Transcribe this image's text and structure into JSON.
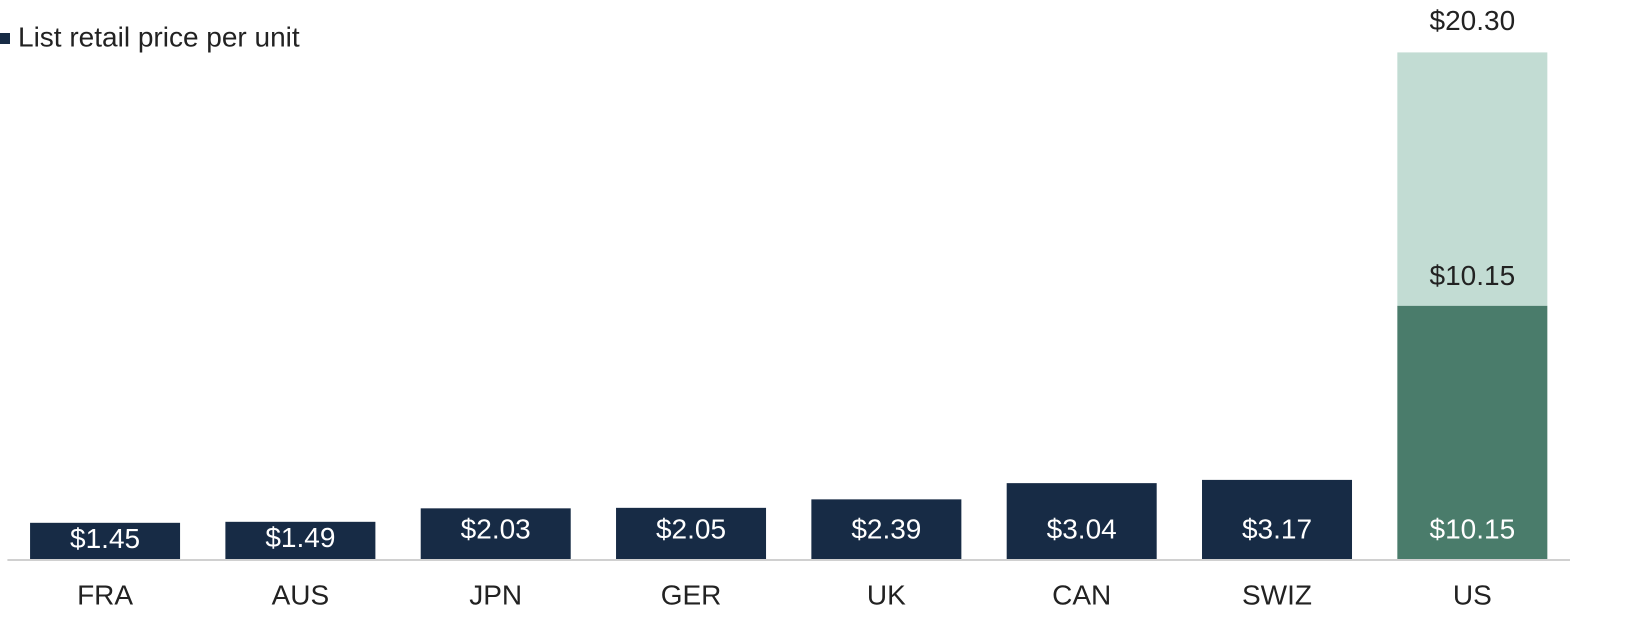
{
  "chart_data": {
    "type": "bar",
    "stacked": true,
    "categories": [
      "FRA",
      "AUS",
      "JPN",
      "GER",
      "UK",
      "CAN",
      "SWIZ",
      "US"
    ],
    "series": [
      {
        "name": "List retail price per unit",
        "color": "#172b45",
        "values": [
          1.45,
          1.49,
          2.03,
          2.05,
          2.39,
          3.04,
          3.17,
          null
        ],
        "value_labels": [
          "$1.45",
          "$1.49",
          "$2.03",
          "$2.05",
          "$2.39",
          "$3.04",
          "$3.17",
          null
        ]
      },
      {
        "color": "#4a7c6b",
        "values": [
          null,
          null,
          null,
          null,
          null,
          null,
          null,
          10.15
        ],
        "value_labels": [
          null,
          null,
          null,
          null,
          null,
          null,
          null,
          "$10.15"
        ]
      },
      {
        "color": "#c2dcd3",
        "values": [
          null,
          null,
          null,
          null,
          null,
          null,
          null,
          10.15
        ],
        "value_labels": [
          null,
          null,
          null,
          null,
          null,
          null,
          null,
          "$10.15"
        ]
      }
    ],
    "totals": [
      null,
      null,
      null,
      null,
      null,
      null,
      null,
      20.3
    ],
    "total_labels": [
      null,
      null,
      null,
      null,
      null,
      null,
      null,
      "$20.30"
    ],
    "ylim": [
      0,
      22.4
    ]
  }
}
